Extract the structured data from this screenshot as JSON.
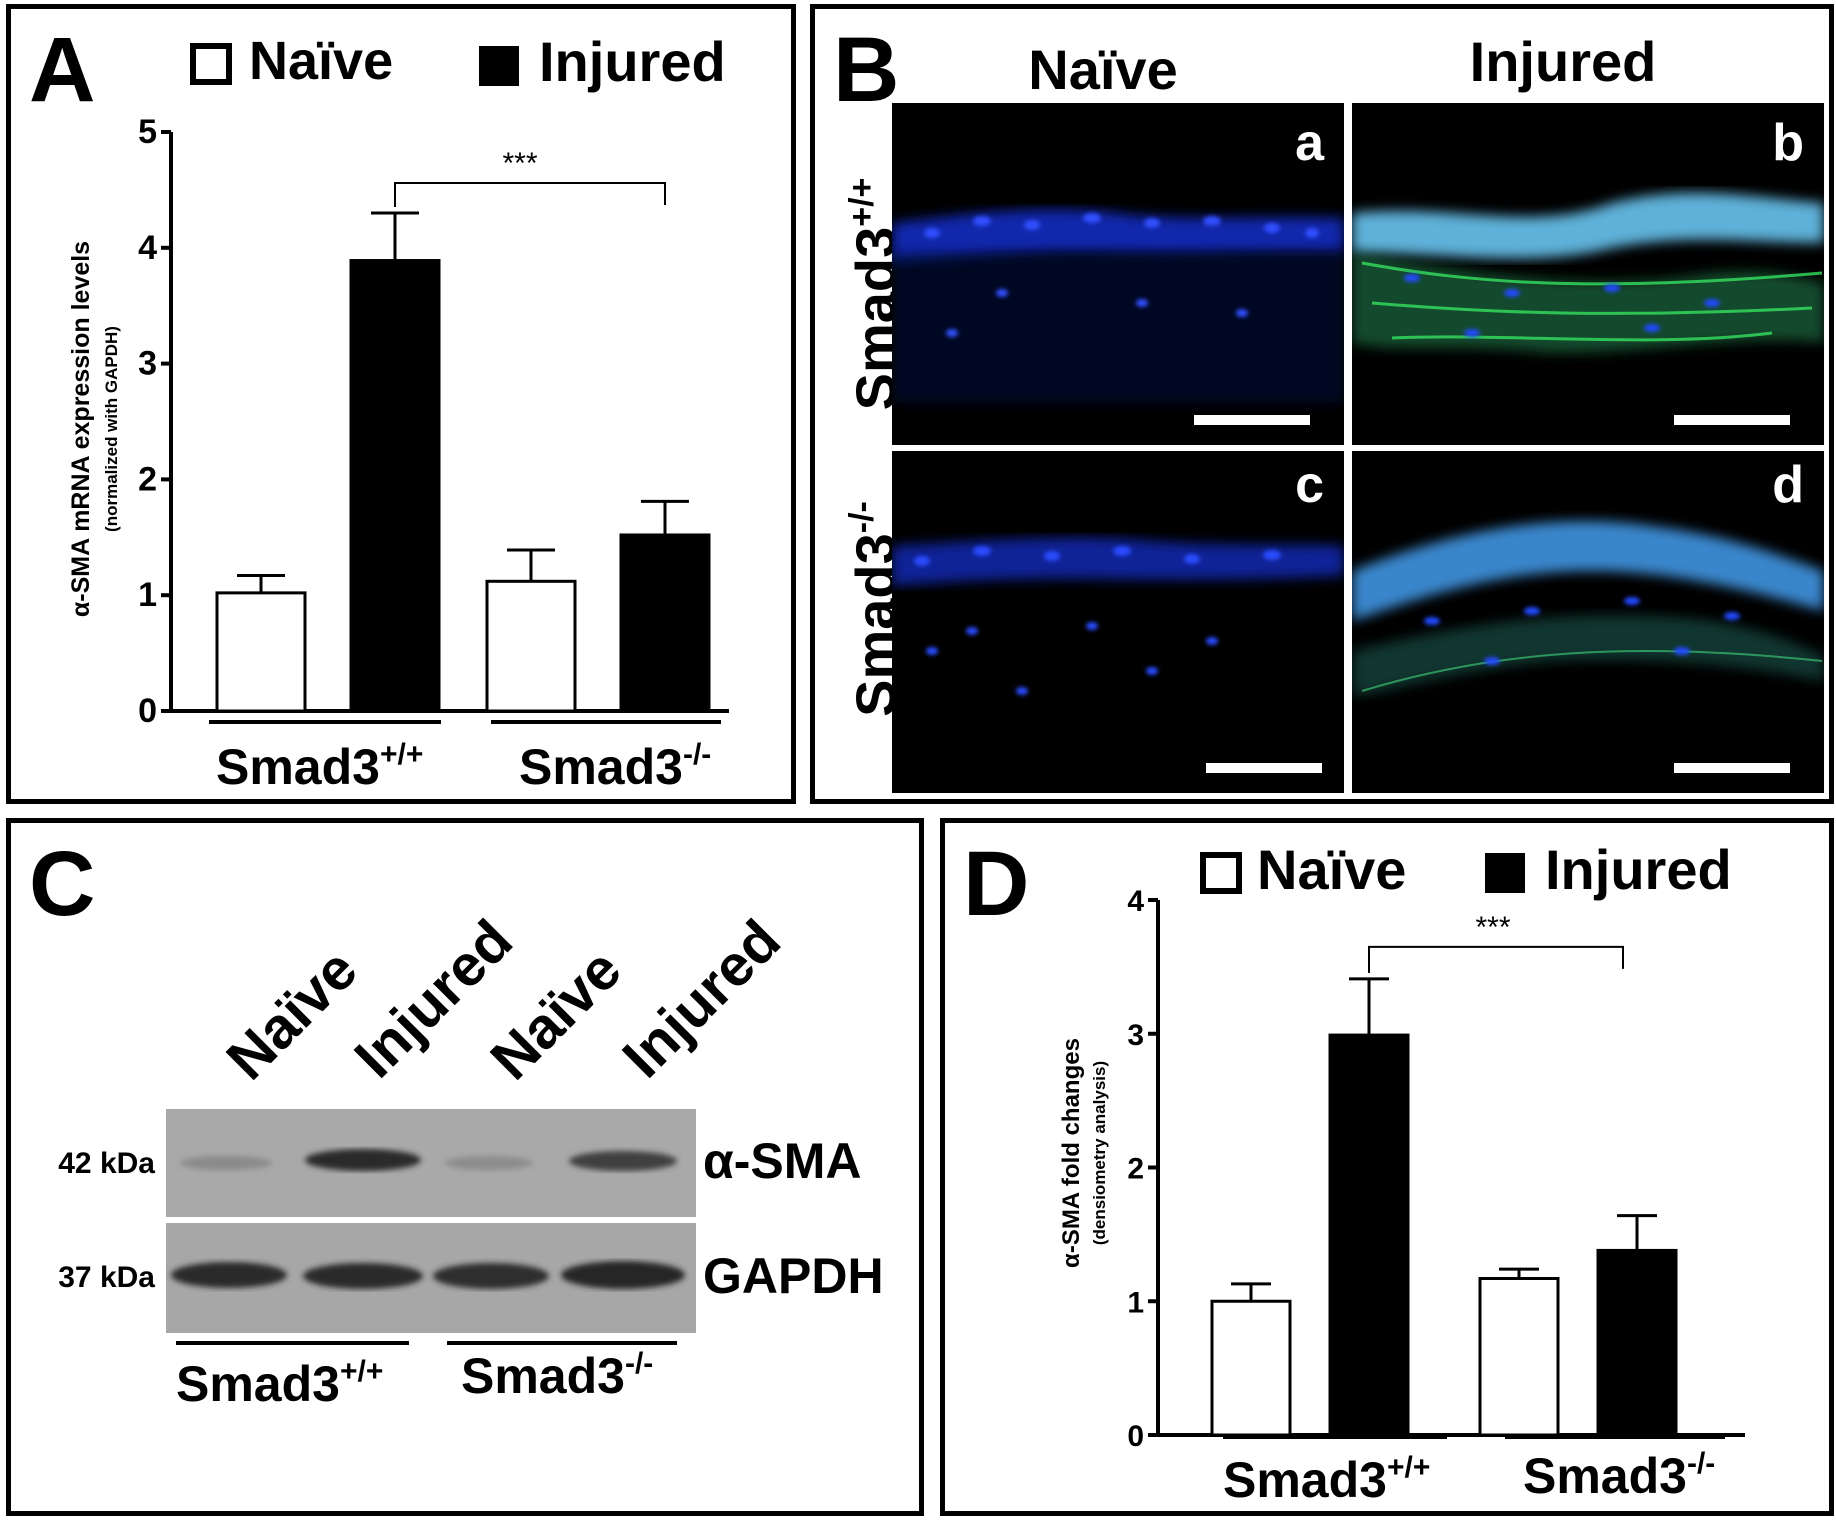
{
  "panelA": {
    "letter": "A",
    "legend": {
      "naive": "Naïve",
      "injured": "Injured"
    },
    "ylabel": "α-SMA mRNA expression levels",
    "ylabel_sub": "(normalized with GAPDH)",
    "significance": "***",
    "groups": [
      {
        "base": "Smad3",
        "sup": "+/+"
      },
      {
        "base": "Smad3",
        "sup": "-/-"
      }
    ],
    "colors": {
      "naive": "#ffffff",
      "injured": "#000000"
    }
  },
  "panelB": {
    "letter": "B",
    "col_labels": [
      "Naïve",
      "Injured"
    ],
    "row_labels": [
      {
        "base": "Smad3",
        "sup": "+/+"
      },
      {
        "base": "Smad3",
        "sup": "-/-"
      }
    ],
    "tile_labels": [
      "a",
      "b",
      "c",
      "d"
    ],
    "stain_colors": {
      "nuclei": "#1a3cff",
      "sma": "#30c040"
    }
  },
  "panelC": {
    "letter": "C",
    "lane_labels": [
      "Naïve",
      "Injured",
      "Naïve",
      "Injured"
    ],
    "bands": [
      {
        "kda": "42 kDa",
        "protein": "α-SMA"
      },
      {
        "kda": "37 kDa",
        "protein": "GAPDH"
      }
    ],
    "groups": [
      {
        "base": "Smad3",
        "sup": "+/+"
      },
      {
        "base": "Smad3",
        "sup": "-/-"
      }
    ]
  },
  "panelD": {
    "letter": "D",
    "legend": {
      "naive": "Naïve",
      "injured": "Injured"
    },
    "ylabel": "α-SMA fold changes",
    "ylabel_sub": "(densiometry analysis)",
    "significance": "***",
    "groups": [
      {
        "base": "Smad3",
        "sup": "+/+"
      },
      {
        "base": "Smad3",
        "sup": "-/-"
      }
    ]
  },
  "chart_data": [
    {
      "panel": "A",
      "type": "bar",
      "categories": [
        "Smad3+/+",
        "Smad3-/-"
      ],
      "series": [
        {
          "name": "Naïve",
          "values": [
            1.02,
            1.12
          ],
          "errors": [
            0.15,
            0.27
          ]
        },
        {
          "name": "Injured",
          "values": [
            3.89,
            1.52
          ],
          "errors": [
            0.41,
            0.29
          ]
        }
      ],
      "ylabel": "α-SMA mRNA expression levels (normalized with GAPDH)",
      "ylim": [
        0,
        5
      ],
      "yticks": [
        0,
        1,
        2,
        3,
        4,
        5
      ],
      "legend": "top"
    },
    {
      "panel": "D",
      "type": "bar",
      "categories": [
        "Smad3+/+",
        "Smad3-/-"
      ],
      "series": [
        {
          "name": "Naïve",
          "values": [
            1.0,
            1.17
          ],
          "errors": [
            0.13,
            0.07
          ]
        },
        {
          "name": "Injured",
          "values": [
            2.99,
            1.38
          ],
          "errors": [
            0.42,
            0.26
          ]
        }
      ],
      "ylabel": "α-SMA fold changes (densiometry analysis)",
      "ylim": [
        0,
        4
      ],
      "yticks": [
        0,
        1,
        2,
        3,
        4
      ],
      "legend": "top"
    }
  ]
}
